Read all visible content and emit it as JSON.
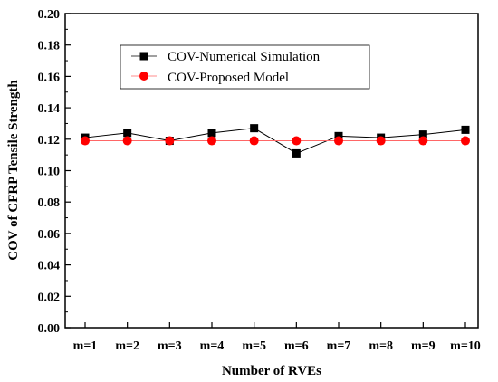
{
  "chart_data": {
    "type": "line",
    "title": "",
    "xlabel": "Number of RVEs",
    "ylabel": "COV of CFRP Tensile Strength",
    "categories": [
      "m=1",
      "m=2",
      "m=3",
      "m=4",
      "m=5",
      "m=6",
      "m=7",
      "m=8",
      "m=9",
      "m=10"
    ],
    "ylim": [
      0.0,
      0.2
    ],
    "yticks": [
      "0.00",
      "0.02",
      "0.04",
      "0.06",
      "0.08",
      "0.10",
      "0.12",
      "0.14",
      "0.16",
      "0.18",
      "0.20"
    ],
    "grid": false,
    "legend": "top-center",
    "series": [
      {
        "name": "COV-Numerical Simulation",
        "marker": "square",
        "color": "#000000",
        "line_color": "#000000",
        "values": [
          0.121,
          0.124,
          0.119,
          0.124,
          0.127,
          0.111,
          0.122,
          0.121,
          0.123,
          0.126
        ]
      },
      {
        "name": "COV-Proposed Model",
        "marker": "circle",
        "color": "#ff0000",
        "line_color": "#ff6666",
        "values": [
          0.119,
          0.119,
          0.119,
          0.119,
          0.119,
          0.119,
          0.119,
          0.119,
          0.119,
          0.119
        ]
      }
    ]
  }
}
